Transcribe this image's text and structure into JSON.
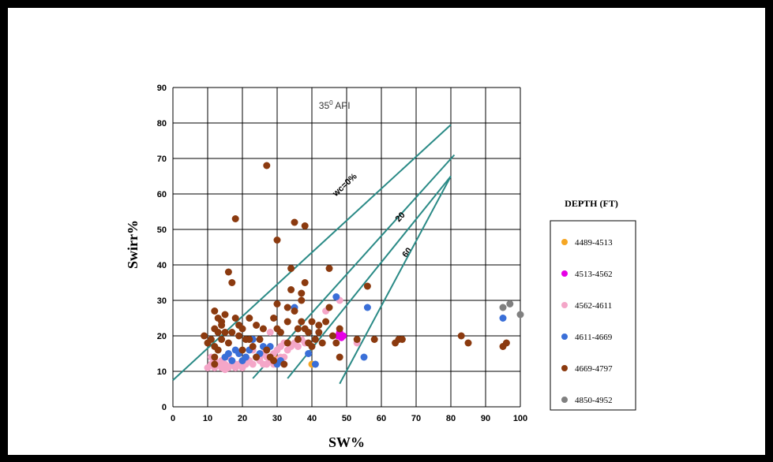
{
  "chart_data": {
    "type": "scatter",
    "title": "",
    "xlabel": "SW%",
    "ylabel": "Swirr%",
    "xlim": [
      0,
      100
    ],
    "ylim": [
      0,
      90
    ],
    "xticks": [
      0,
      10,
      20,
      30,
      40,
      50,
      60,
      70,
      80,
      90,
      100
    ],
    "yticks": [
      0,
      10,
      20,
      30,
      40,
      50,
      60,
      70,
      80,
      90
    ],
    "grid": true,
    "legend_placement": "right",
    "annotation": {
      "text": "35",
      "superscript": "0",
      "suffix": " API",
      "x": 42,
      "y": 84
    },
    "legend_title": "DEPTH (FT)",
    "lines": [
      {
        "label": "wc=0%",
        "points": [
          [
            0,
            7.5
          ],
          [
            80,
            79.5
          ]
        ],
        "label_at": [
          50,
          62
        ],
        "color": "#2a8a86"
      },
      {
        "label": "20",
        "points": [
          [
            23,
            8
          ],
          [
            81,
            71
          ]
        ],
        "label_at": [
          66,
          53
        ],
        "color": "#2a8a86"
      },
      {
        "label": "60",
        "points": [
          [
            33,
            8
          ],
          [
            80,
            65
          ]
        ],
        "label_at": [
          68,
          43
        ],
        "color": "#2a8a86"
      },
      {
        "label": "",
        "points": [
          [
            48,
            6.5
          ],
          [
            80,
            65
          ]
        ],
        "label_at": null,
        "color": "#2a8a86"
      }
    ],
    "series": [
      {
        "name": "4489-4513",
        "color": "#f5a623",
        "points": [
          [
            29,
            14
          ],
          [
            40,
            12
          ]
        ]
      },
      {
        "name": "4513-4562",
        "color": "#e600e6",
        "points": [
          [
            48,
            21
          ],
          [
            49,
            20
          ],
          [
            47.5,
            20
          ],
          [
            48.5,
            19.5
          ]
        ]
      },
      {
        "name": "4562-4611",
        "color": "#f4a6c8",
        "points": [
          [
            10,
            11
          ],
          [
            11,
            12
          ],
          [
            12,
            11
          ],
          [
            12,
            13
          ],
          [
            13,
            12
          ],
          [
            14,
            11
          ],
          [
            15,
            12
          ],
          [
            16,
            11
          ],
          [
            17,
            12
          ],
          [
            18,
            11
          ],
          [
            19,
            12
          ],
          [
            20,
            13
          ],
          [
            21,
            12
          ],
          [
            22,
            13
          ],
          [
            23,
            12
          ],
          [
            24,
            14
          ],
          [
            25,
            13
          ],
          [
            26,
            15
          ],
          [
            27,
            14
          ],
          [
            28,
            13
          ],
          [
            29,
            15
          ],
          [
            30,
            16
          ],
          [
            31,
            17
          ],
          [
            32,
            18
          ],
          [
            33,
            16
          ],
          [
            34,
            17
          ],
          [
            35,
            18
          ],
          [
            36,
            17
          ],
          [
            37,
            19
          ],
          [
            14,
            13
          ],
          [
            16,
            14
          ],
          [
            18,
            12
          ],
          [
            20,
            11
          ],
          [
            25,
            14
          ],
          [
            27,
            12
          ],
          [
            30,
            13
          ],
          [
            32,
            14
          ],
          [
            44,
            27
          ],
          [
            48,
            30
          ],
          [
            53,
            18
          ],
          [
            28,
            21
          ],
          [
            38,
            18
          ],
          [
            15,
            10.5
          ],
          [
            11,
            14
          ],
          [
            12,
            12
          ],
          [
            21,
            14
          ],
          [
            23,
            16
          ],
          [
            26,
            12
          ],
          [
            29,
            12
          ],
          [
            31,
            14
          ]
        ]
      },
      {
        "name": "4611-4669",
        "color": "#3a6fd8",
        "points": [
          [
            15,
            14
          ],
          [
            16,
            15
          ],
          [
            18,
            16
          ],
          [
            20,
            13
          ],
          [
            21,
            14
          ],
          [
            22,
            16
          ],
          [
            23,
            19
          ],
          [
            25,
            15
          ],
          [
            28,
            17
          ],
          [
            30,
            12
          ],
          [
            31,
            13
          ],
          [
            35,
            28
          ],
          [
            39,
            15
          ],
          [
            41,
            12
          ],
          [
            47,
            31
          ],
          [
            55,
            14
          ],
          [
            56,
            28
          ],
          [
            95,
            25
          ],
          [
            17,
            13
          ],
          [
            24,
            14
          ],
          [
            26,
            17
          ],
          [
            19,
            15
          ]
        ]
      },
      {
        "name": "4669-4797",
        "color": "#8b3a0f",
        "points": [
          [
            9,
            20
          ],
          [
            10,
            18
          ],
          [
            11,
            19
          ],
          [
            12,
            22
          ],
          [
            12,
            17
          ],
          [
            13,
            21
          ],
          [
            13,
            25
          ],
          [
            14,
            19
          ],
          [
            14,
            23
          ],
          [
            15,
            26
          ],
          [
            16,
            18
          ],
          [
            16,
            38
          ],
          [
            17,
            35
          ],
          [
            17,
            21
          ],
          [
            18,
            53
          ],
          [
            18,
            25
          ],
          [
            19,
            20
          ],
          [
            19,
            23
          ],
          [
            20,
            16
          ],
          [
            20,
            22
          ],
          [
            21,
            19
          ],
          [
            22,
            25
          ],
          [
            23,
            17
          ],
          [
            24,
            14
          ],
          [
            25,
            19
          ],
          [
            26,
            22
          ],
          [
            27,
            68
          ],
          [
            27,
            16
          ],
          [
            28,
            14
          ],
          [
            29,
            13
          ],
          [
            30,
            47
          ],
          [
            30,
            29
          ],
          [
            30,
            22
          ],
          [
            31,
            21
          ],
          [
            32,
            12
          ],
          [
            33,
            18
          ],
          [
            33,
            24
          ],
          [
            34,
            39
          ],
          [
            34,
            33
          ],
          [
            35,
            52
          ],
          [
            35,
            27
          ],
          [
            36,
            22
          ],
          [
            36,
            19
          ],
          [
            37,
            32
          ],
          [
            37,
            24
          ],
          [
            38,
            51
          ],
          [
            38,
            35
          ],
          [
            38,
            22
          ],
          [
            39,
            21
          ],
          [
            39,
            18
          ],
          [
            40,
            24
          ],
          [
            40,
            17
          ],
          [
            41,
            19
          ],
          [
            42,
            23
          ],
          [
            42,
            21
          ],
          [
            43,
            18
          ],
          [
            45,
            39
          ],
          [
            45,
            28
          ],
          [
            46,
            20
          ],
          [
            47,
            18
          ],
          [
            48,
            14
          ],
          [
            48,
            22
          ],
          [
            53,
            19
          ],
          [
            56,
            34
          ],
          [
            58,
            19
          ],
          [
            64,
            18
          ],
          [
            65,
            19
          ],
          [
            66,
            19
          ],
          [
            83,
            20
          ],
          [
            85,
            18
          ],
          [
            95,
            17
          ],
          [
            96,
            18
          ],
          [
            12,
            14
          ],
          [
            12,
            12
          ],
          [
            13,
            16
          ],
          [
            15,
            21
          ],
          [
            22,
            19
          ],
          [
            24,
            23
          ],
          [
            29,
            25
          ],
          [
            33,
            28
          ],
          [
            37,
            30
          ],
          [
            44,
            24
          ],
          [
            12,
            27
          ],
          [
            14,
            24
          ]
        ]
      },
      {
        "name": "4850-4952",
        "color": "#808080",
        "points": [
          [
            95,
            28
          ],
          [
            97,
            29
          ],
          [
            100,
            26
          ]
        ]
      }
    ]
  }
}
